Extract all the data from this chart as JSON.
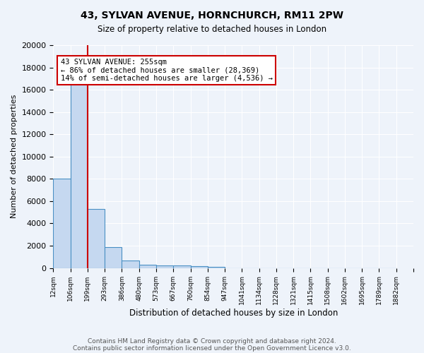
{
  "title1": "43, SYLVAN AVENUE, HORNCHURCH, RM11 2PW",
  "title2": "Size of property relative to detached houses in London",
  "xlabel": "Distribution of detached houses by size in London",
  "ylabel": "Number of detached properties",
  "bin_labels": [
    "12sqm",
    "106sqm",
    "199sqm",
    "293sqm",
    "386sqm",
    "480sqm",
    "573sqm",
    "667sqm",
    "760sqm",
    "854sqm",
    "947sqm",
    "1041sqm",
    "1134sqm",
    "1228sqm",
    "1321sqm",
    "1415sqm",
    "1508sqm",
    "1602sqm",
    "1695sqm",
    "1789sqm",
    "1882sqm"
  ],
  "bar_values": [
    8050,
    16500,
    5300,
    1850,
    700,
    300,
    220,
    200,
    175,
    130,
    0,
    0,
    0,
    0,
    0,
    0,
    0,
    0,
    0,
    0
  ],
  "bar_color": "#c5d8f0",
  "bar_edge_color": "#4a90c4",
  "ylim": [
    0,
    20000
  ],
  "yticks": [
    0,
    2000,
    4000,
    6000,
    8000,
    10000,
    12000,
    14000,
    16000,
    18000,
    20000
  ],
  "property_line_x": 2,
  "property_label": "43 SYLVAN AVENUE: 255sqm",
  "annotation_line1": "← 86% of detached houses are smaller (28,369)",
  "annotation_line2": "14% of semi-detached houses are larger (4,536) →",
  "annotation_box_color": "#ffffff",
  "annotation_border_color": "#cc0000",
  "footnote1": "Contains HM Land Registry data © Crown copyright and database right 2024.",
  "footnote2": "Contains public sector information licensed under the Open Government Licence v3.0.",
  "bg_color": "#eef3fa",
  "grid_color": "#ffffff",
  "property_line_color": "#cc0000"
}
